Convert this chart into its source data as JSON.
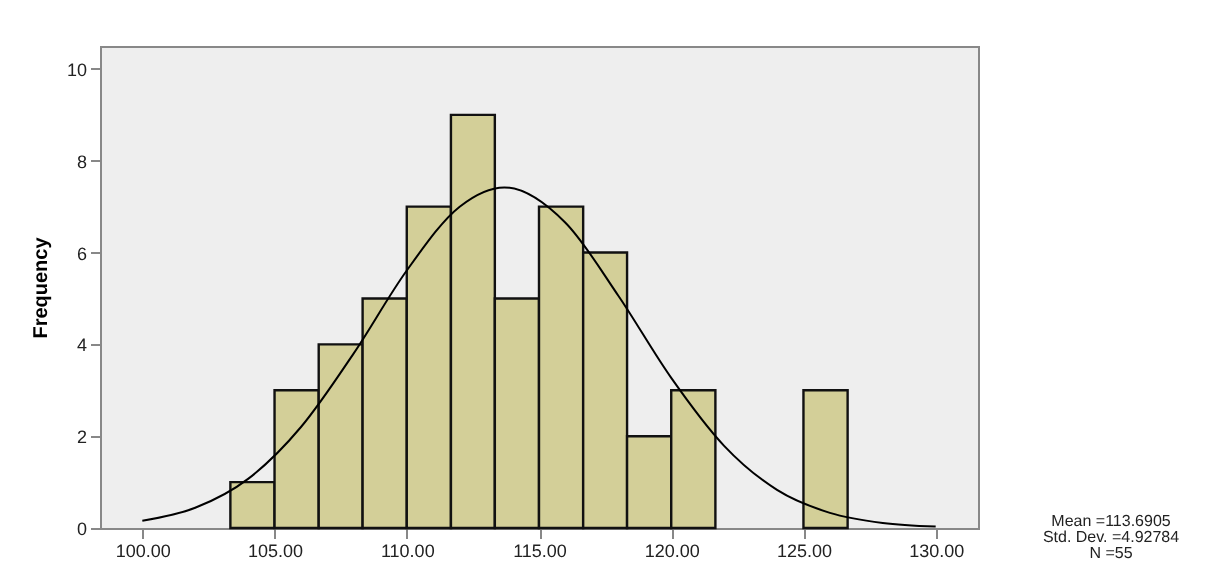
{
  "chart_data": {
    "type": "histogram",
    "ylabel": "Frequency",
    "bins": [
      103.33,
      105,
      106.67,
      108.33,
      110,
      111.67,
      113.33,
      115,
      116.67,
      118.33,
      120,
      121.67,
      123.33,
      125,
      126.67
    ],
    "values": [
      1,
      3,
      4,
      5,
      7,
      9,
      5,
      7,
      6,
      2,
      3,
      0,
      0,
      3
    ],
    "color": "#d3cf98",
    "series": [
      {
        "type": "line",
        "color": "#000000",
        "x": [
          100,
          102,
          104,
          106,
          108,
          110,
          112,
          113.69,
          116,
          118,
          120,
          122,
          124,
          126,
          128,
          130
        ],
        "values": [
          0.16,
          0.44,
          1.07,
          2.2,
          3.81,
          5.61,
          7.0,
          7.42,
          6.65,
          5.06,
          3.27,
          1.79,
          0.83,
          0.33,
          0.11,
          0.03
        ]
      }
    ],
    "xlim": [
      98.4,
      131.6
    ],
    "xticks": [
      {
        "value": 100,
        "label": "100.00"
      },
      {
        "value": 105,
        "label": "105.00"
      },
      {
        "value": 110,
        "label": "110.00"
      },
      {
        "value": 115,
        "label": "115.00"
      },
      {
        "value": 120,
        "label": "120.00"
      },
      {
        "value": 125,
        "label": "125.00"
      },
      {
        "value": 130,
        "label": "130.00"
      }
    ],
    "ylim": [
      0,
      10.5
    ],
    "yticks": [
      0,
      2,
      4,
      6,
      8,
      10
    ],
    "grid": false,
    "annotations": [
      "Mean =113.6905",
      "Std. Dev. =4.92784",
      "N =55"
    ]
  }
}
